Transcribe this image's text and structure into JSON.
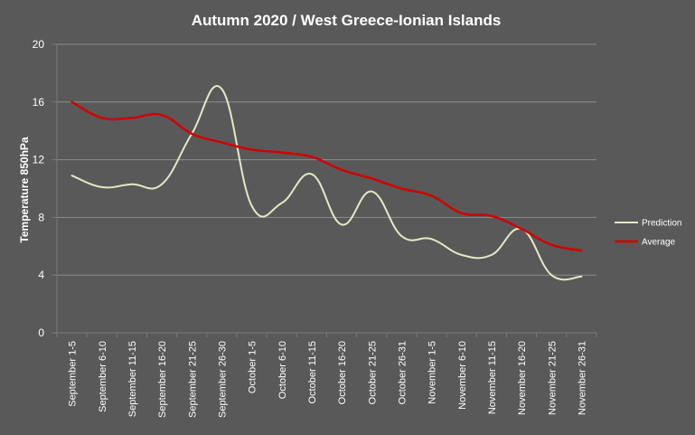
{
  "chart_data": {
    "type": "line",
    "title": "Autumn 2020 / West Greece-Ionian Islands",
    "xlabel": "",
    "ylabel": "Temperature 850hPa",
    "ylim": [
      0,
      20
    ],
    "yticks": [
      0,
      4,
      8,
      12,
      16,
      20
    ],
    "grid": true,
    "legend_position": "right",
    "categories": [
      "September 1-5",
      "September 6-10",
      "September 11-15",
      "September 16-20",
      "September 21-25",
      "September 26-30",
      "October 1-5",
      "October 6-10",
      "October 11-15",
      "October 16-20",
      "October 21-25",
      "October 26-31",
      "November 1-5",
      "November 6-10",
      "November 11-15",
      "November 16-20",
      "November 21-25",
      "November 26-31"
    ],
    "series": [
      {
        "name": "Prediction",
        "color": "#e6e8c2",
        "values": [
          10.9,
          10.1,
          10.3,
          10.3,
          13.8,
          16.9,
          8.8,
          9.0,
          11.0,
          7.5,
          9.8,
          6.7,
          6.5,
          5.4,
          5.4,
          7.2,
          4.0,
          3.9
        ]
      },
      {
        "name": "Average",
        "color": "#d40000",
        "values": [
          16.0,
          14.9,
          14.9,
          15.1,
          13.8,
          13.2,
          12.7,
          12.5,
          12.2,
          11.3,
          10.7,
          10.0,
          9.5,
          8.3,
          8.1,
          7.2,
          6.1,
          5.7
        ]
      }
    ]
  },
  "colors": {
    "background": "#595959",
    "gridline": "#8c8c8c",
    "axis": "#7a7a7a"
  }
}
